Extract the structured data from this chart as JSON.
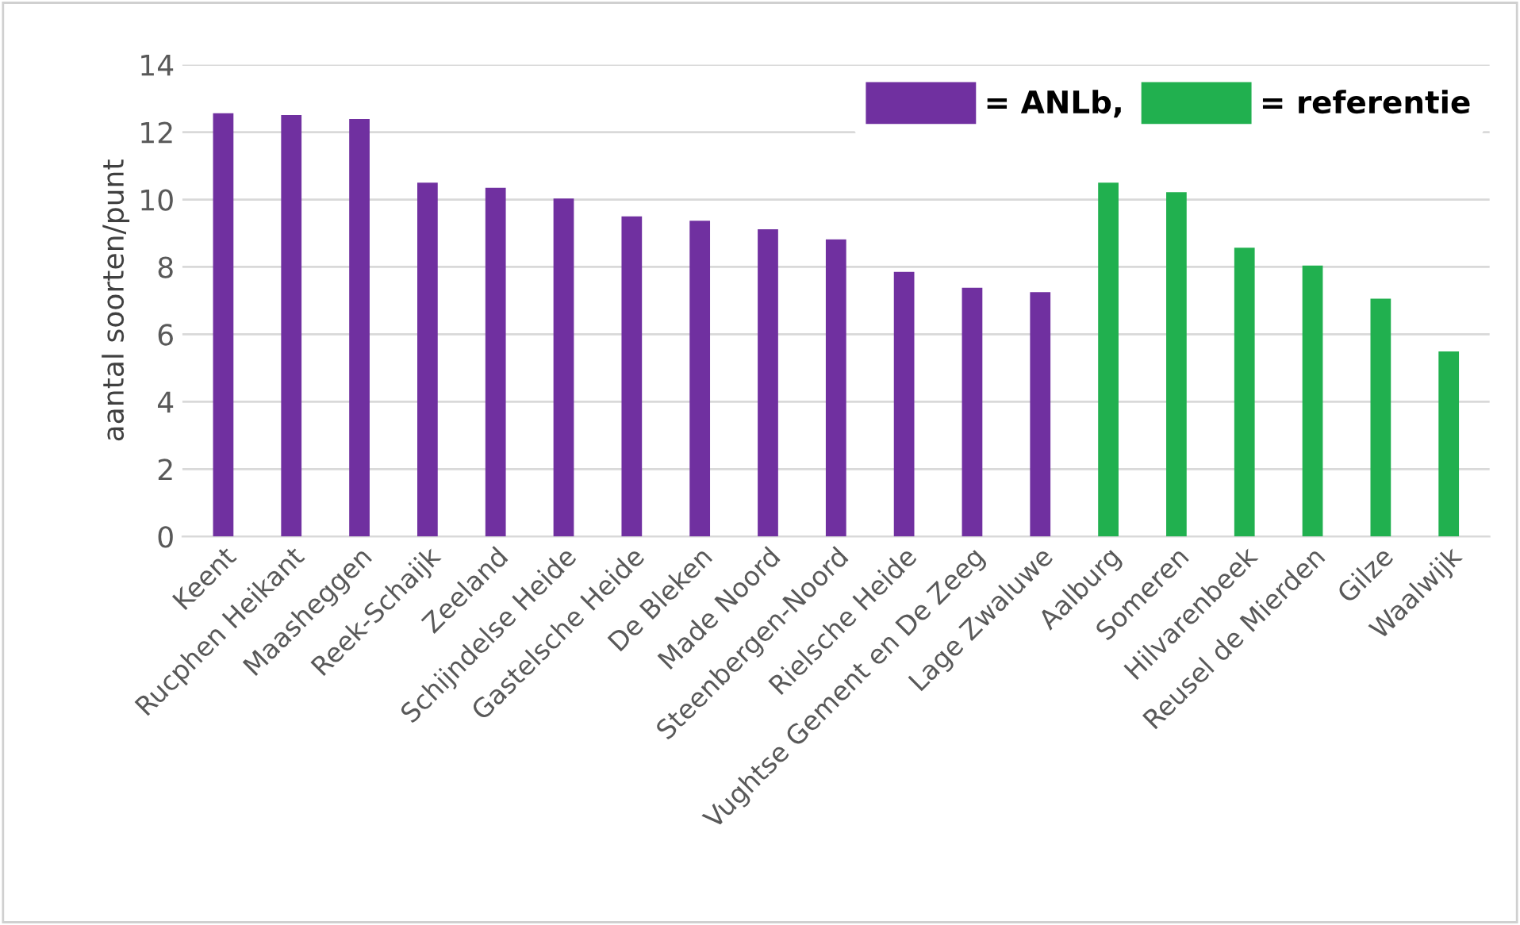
{
  "chart_data": {
    "type": "bar",
    "ylabel": "aantal soorten/punt",
    "categories": [
      "Keent",
      "Rucphen Heikant",
      "Maasheggen",
      "Reek-Schaijk",
      "Zeeland",
      "Schijndelse Heide",
      "Gastelsche Heide",
      "De Bleken",
      "Made Noord",
      "Steenbergen-Noord",
      "Rielsche Heide",
      "Vughtse Gement en De Zeeg",
      "Lage Zwaluwe",
      "Aalburg",
      "Someren",
      "Hilvarenbeek",
      "Reusel de Mierden",
      "Gilze",
      "Waalwijk"
    ],
    "series": [
      {
        "name": "= ANLb,",
        "color": "#7030a0",
        "values": [
          12.56,
          12.51,
          12.39,
          10.5,
          10.35,
          10.03,
          9.5,
          9.37,
          9.12,
          8.82,
          7.85,
          7.38,
          7.25,
          null,
          null,
          null,
          null,
          null,
          null
        ]
      },
      {
        "name": "= referentie",
        "color": "#21b04f",
        "values": [
          null,
          null,
          null,
          null,
          null,
          null,
          null,
          null,
          null,
          null,
          null,
          null,
          null,
          10.5,
          10.22,
          8.57,
          8.04,
          7.06,
          5.49
        ]
      }
    ],
    "ylim": [
      0,
      14
    ],
    "yticks": [
      0,
      2,
      4,
      6,
      8,
      10,
      12,
      14
    ],
    "grid": "y",
    "legend": "top right"
  }
}
